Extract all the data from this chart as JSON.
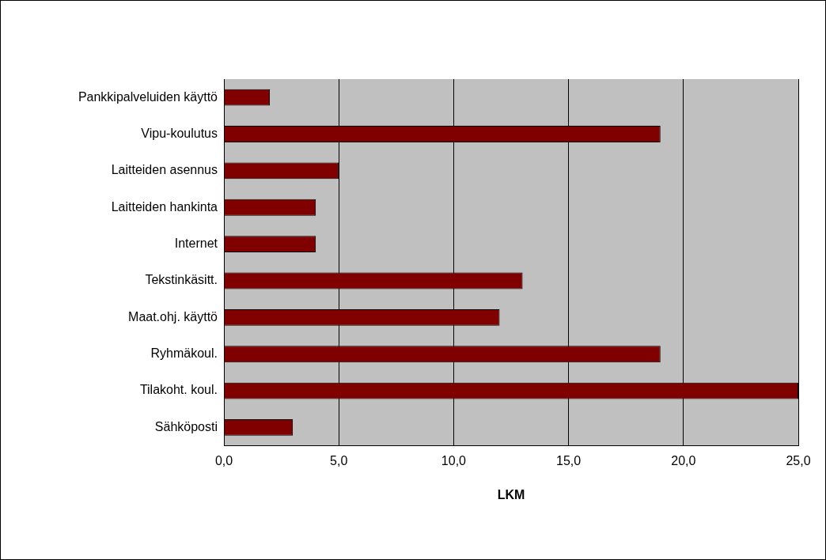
{
  "chart_data": {
    "type": "bar",
    "orientation": "horizontal",
    "xlabel": "LKM",
    "categories": [
      "Pankkipalveluiden käyttö",
      "Vipu-koulutus",
      "Laitteiden asennus",
      "Laitteiden hankinta",
      "Internet",
      "Tekstinkäsitt.",
      "Maat.ohj. käyttö",
      "Ryhmäkoul.",
      "Tilakoht. koul.",
      "Sähköposti"
    ],
    "values": [
      2,
      19,
      5,
      4,
      4,
      13,
      12,
      19,
      25,
      3
    ],
    "color": "#800000",
    "xlim": [
      0,
      25
    ],
    "xticks": [
      {
        "value": 0,
        "label": "0,0"
      },
      {
        "value": 5,
        "label": "5,0"
      },
      {
        "value": 10,
        "label": "10,0"
      },
      {
        "value": 15,
        "label": "15,0"
      },
      {
        "value": 20,
        "label": "20,0"
      },
      {
        "value": 25,
        "label": "25,0"
      }
    ],
    "grid": "x",
    "legend": false
  }
}
